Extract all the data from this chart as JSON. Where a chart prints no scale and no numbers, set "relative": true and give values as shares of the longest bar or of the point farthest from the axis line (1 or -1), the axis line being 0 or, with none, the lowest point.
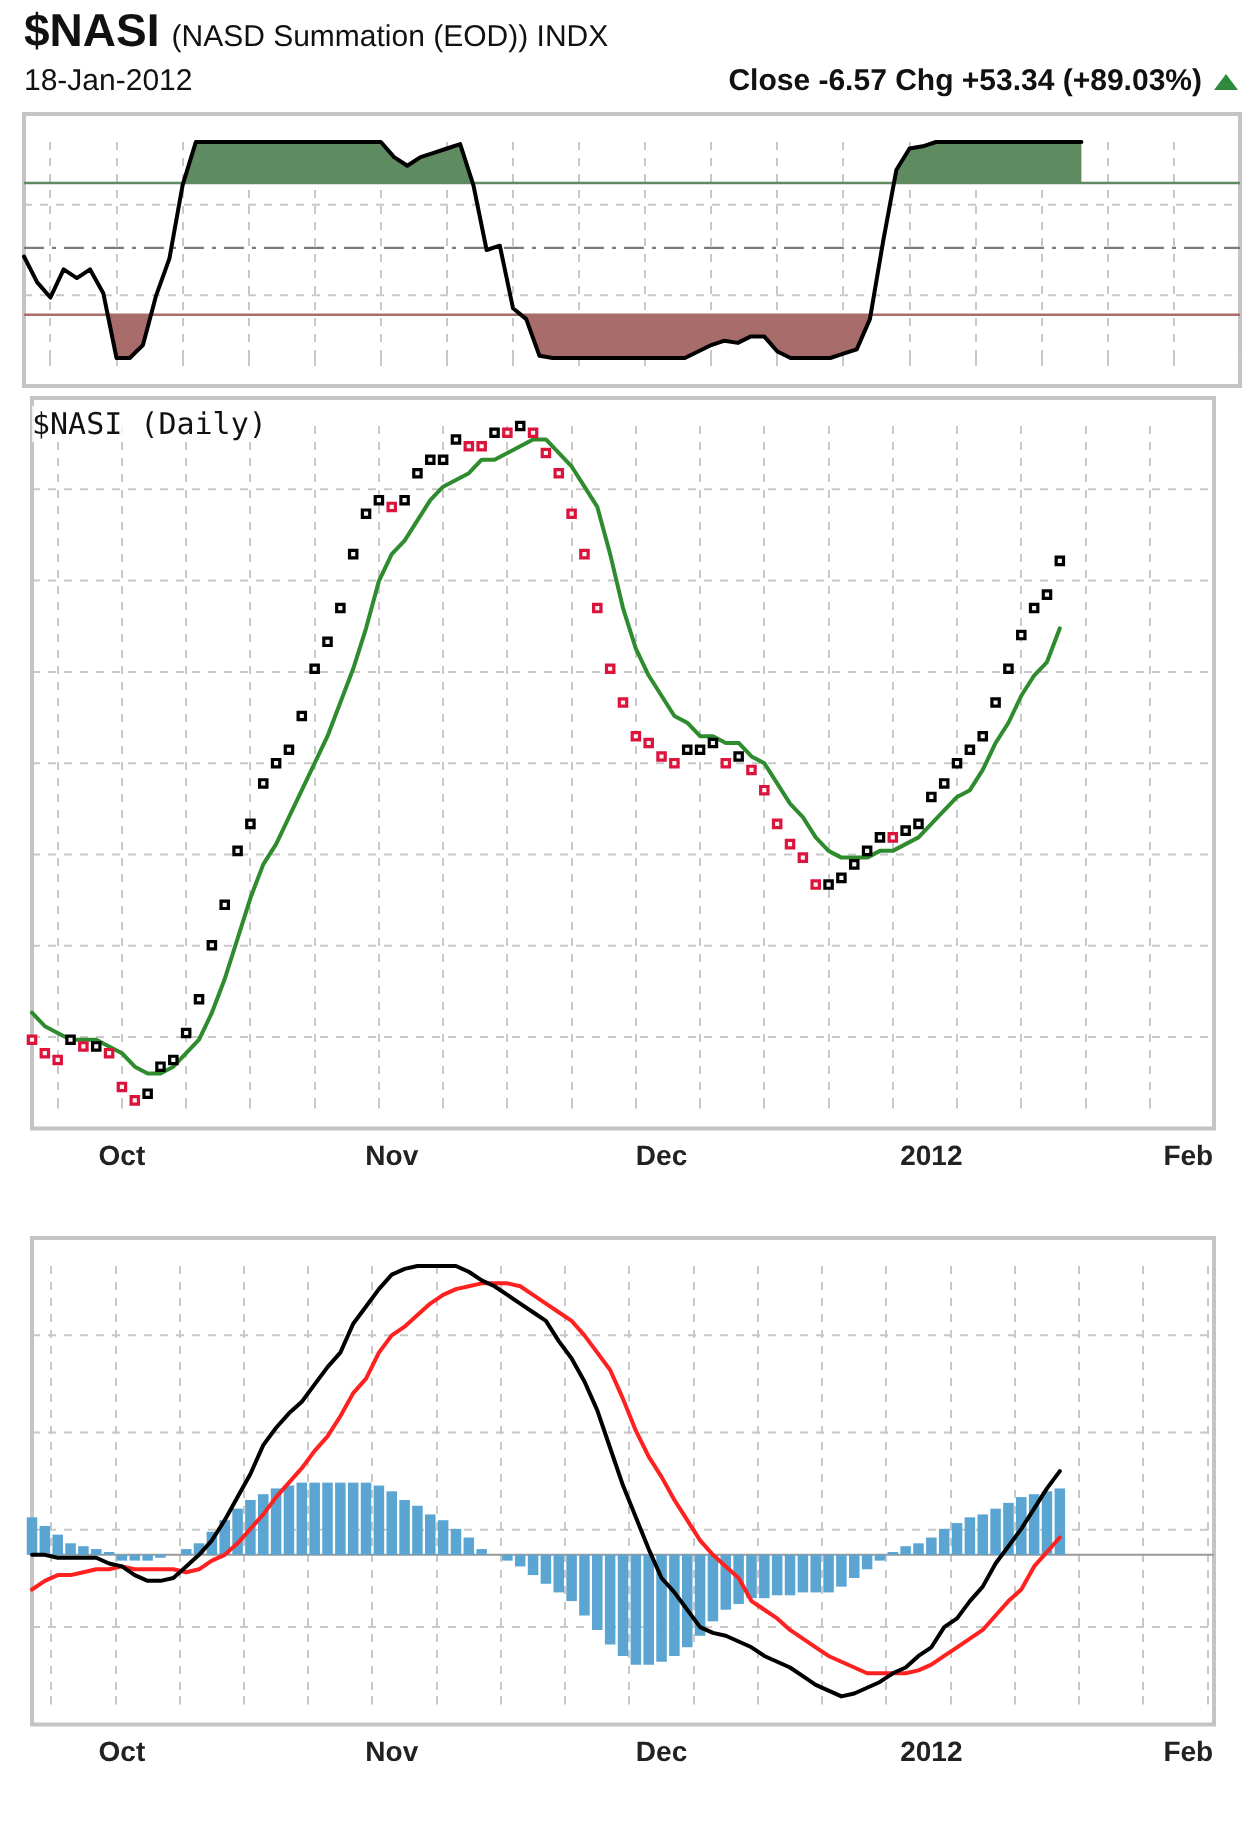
{
  "chart_data": [
    {
      "type": "line",
      "title": "$NASI",
      "subtitle": "(NASD Summation (EOD))  INDX",
      "annotations": [
        "18-Jan-2012",
        "Close -6.57  Chg +53.34 (+89.03%)"
      ],
      "relative": true,
      "grid": true,
      "tick_labels": false,
      "categories": [
        null,
        null,
        null,
        null,
        null,
        null,
        null,
        null,
        null,
        null,
        null,
        null,
        null,
        null,
        null,
        null,
        null,
        null,
        null,
        null,
        null,
        null,
        null,
        null,
        null,
        null,
        null,
        null,
        null,
        null,
        null,
        null,
        null,
        null,
        null,
        null,
        null,
        null,
        null,
        null,
        null,
        null,
        null,
        null,
        null,
        null,
        null,
        null,
        null,
        null,
        null,
        null,
        null,
        null,
        null,
        null,
        null,
        null,
        null,
        null,
        null,
        null,
        null,
        null,
        null,
        null,
        null,
        null,
        null,
        null,
        null,
        null,
        null,
        null,
        null,
        null,
        null,
        null,
        null,
        null,
        null,
        null,
        null,
        null,
        null,
        null,
        null,
        null,
        null,
        null,
        null,
        null,
        null
      ],
      "series": [
        {
          "color": "#000000",
          "values": [
            0.47,
            0.35,
            0.28,
            0.41,
            0.37,
            0.41,
            0.3,
            0,
            0,
            0.06,
            0.29,
            0.46,
            0.8,
            1,
            1,
            1,
            1,
            1,
            1,
            1,
            1,
            1,
            1,
            1,
            1,
            1,
            1,
            1,
            0.93,
            0.89,
            0.93,
            0.95,
            0.97,
            0.99,
            0.8,
            0.5,
            0.52,
            0.23,
            0.18,
            0.01,
            0,
            0,
            0,
            0,
            0,
            0,
            0,
            0,
            0,
            0,
            0,
            0.03,
            0.06,
            0.08,
            0.07,
            0.1,
            0.1,
            0.03,
            0,
            0,
            0,
            0,
            0.02,
            0.04,
            0.18,
            0.54,
            0.87,
            0.97,
            0.98,
            1,
            1,
            1,
            1,
            1,
            1,
            1,
            1,
            1,
            1,
            1,
            1,
            null,
            null,
            null,
            null,
            null,
            null,
            null,
            null,
            null,
            null,
            null,
            null
          ]
        }
      ],
      "ref_lines": [
        {
          "axis": "y",
          "value": 0.81,
          "color": "#5f8b61"
        },
        {
          "axis": "y",
          "value": 0.51,
          "line_style": "dashed"
        },
        {
          "axis": "y",
          "value": 0.2,
          "color": "#a86c6a"
        }
      ]
    },
    {
      "type": "scatter",
      "title": "$NASI (Daily)",
      "relative": true,
      "grid": true,
      "marker": "square",
      "categories": [
        null,
        null,
        null,
        null,
        null,
        null,
        null,
        "Oct",
        null,
        null,
        null,
        null,
        null,
        null,
        null,
        null,
        null,
        null,
        null,
        null,
        null,
        null,
        null,
        null,
        null,
        null,
        null,
        null,
        "Nov",
        null,
        null,
        null,
        null,
        null,
        null,
        null,
        null,
        null,
        null,
        null,
        null,
        null,
        null,
        null,
        null,
        null,
        null,
        null,
        null,
        "Dec",
        null,
        null,
        null,
        null,
        null,
        null,
        null,
        null,
        null,
        null,
        null,
        null,
        null,
        null,
        null,
        null,
        null,
        null,
        null,
        null,
        "2012",
        null,
        null,
        null,
        null,
        null,
        null,
        null,
        null,
        null,
        null,
        null,
        null,
        null,
        null,
        null,
        null,
        null,
        null,
        null,
        "Feb",
        null,
        null
      ],
      "series": [
        {
          "type": "line",
          "marker": "none",
          "color": "#2e8b2e",
          "values": [
            0.13,
            0.11,
            0.1,
            0.09,
            0.09,
            0.09,
            0.08,
            0.07,
            0.05,
            0.04,
            0.04,
            0.05,
            0.07,
            0.09,
            0.13,
            0.18,
            0.24,
            0.3,
            0.35,
            0.38,
            0.42,
            0.46,
            0.5,
            0.54,
            0.59,
            0.64,
            0.7,
            0.77,
            0.81,
            0.83,
            0.86,
            0.89,
            0.91,
            0.92,
            0.93,
            0.95,
            0.95,
            0.96,
            0.97,
            0.98,
            0.98,
            0.96,
            0.94,
            0.91,
            0.88,
            0.81,
            0.73,
            0.67,
            0.63,
            0.6,
            0.57,
            0.56,
            0.54,
            0.54,
            0.53,
            0.53,
            0.51,
            0.5,
            0.47,
            0.44,
            0.42,
            0.39,
            0.37,
            0.36,
            0.36,
            0.36,
            0.37,
            0.37,
            0.38,
            0.39,
            0.41,
            0.43,
            0.45,
            0.46,
            0.49,
            0.53,
            0.56,
            0.6,
            0.63,
            0.65,
            0.7,
            null,
            null,
            null,
            null,
            null,
            null,
            null,
            null,
            null,
            null,
            null,
            null
          ]
        },
        {
          "color": "#000000",
          "values": [
            null,
            null,
            null,
            0.09,
            null,
            0.08,
            null,
            null,
            null,
            0.01,
            0.05,
            0.06,
            0.1,
            0.15,
            0.23,
            0.29,
            0.37,
            0.41,
            0.47,
            0.5,
            0.52,
            0.57,
            0.64,
            0.68,
            0.73,
            0.81,
            0.87,
            0.89,
            null,
            0.89,
            0.93,
            0.95,
            0.95,
            0.98,
            null,
            null,
            0.99,
            null,
            1,
            null,
            null,
            null,
            null,
            null,
            null,
            null,
            null,
            null,
            null,
            null,
            null,
            0.52,
            0.52,
            0.53,
            null,
            0.51,
            null,
            null,
            null,
            null,
            null,
            null,
            0.32,
            0.33,
            0.35,
            0.37,
            0.39,
            null,
            0.4,
            0.41,
            0.45,
            0.47,
            0.5,
            0.52,
            0.54,
            0.59,
            0.64,
            0.69,
            0.73,
            0.75,
            0.8,
            null,
            null,
            null,
            null,
            null,
            null,
            null,
            null,
            null,
            null,
            null,
            null
          ]
        },
        {
          "color": "#dc143c",
          "values": [
            0.09,
            0.07,
            0.06,
            null,
            0.08,
            null,
            0.07,
            0.02,
            0,
            null,
            null,
            null,
            null,
            null,
            null,
            null,
            null,
            null,
            null,
            null,
            null,
            null,
            null,
            null,
            null,
            null,
            null,
            null,
            0.88,
            null,
            null,
            null,
            null,
            null,
            0.97,
            0.97,
            null,
            0.99,
            null,
            0.99,
            0.96,
            0.93,
            0.87,
            0.81,
            0.73,
            0.64,
            0.59,
            0.54,
            0.53,
            0.51,
            0.5,
            null,
            null,
            null,
            0.5,
            null,
            0.49,
            0.46,
            0.41,
            0.38,
            0.36,
            0.32,
            null,
            null,
            null,
            null,
            null,
            0.39,
            null,
            null,
            null,
            null,
            null,
            null,
            null,
            null,
            null,
            null,
            null,
            null,
            null,
            null,
            null,
            null,
            null,
            null,
            null,
            null,
            null,
            null,
            null,
            null,
            null
          ]
        }
      ]
    },
    {
      "type": "bar",
      "relative": true,
      "grid": true,
      "categories": [
        null,
        null,
        null,
        null,
        null,
        null,
        null,
        "Oct",
        null,
        null,
        null,
        null,
        null,
        null,
        null,
        null,
        null,
        null,
        null,
        null,
        null,
        null,
        null,
        null,
        null,
        null,
        null,
        null,
        "Nov",
        null,
        null,
        null,
        null,
        null,
        null,
        null,
        null,
        null,
        null,
        null,
        null,
        null,
        null,
        null,
        null,
        null,
        null,
        null,
        null,
        "Dec",
        null,
        null,
        null,
        null,
        null,
        null,
        null,
        null,
        null,
        null,
        null,
        null,
        null,
        null,
        null,
        null,
        null,
        null,
        null,
        null,
        "2012",
        null,
        null,
        null,
        null,
        null,
        null,
        null,
        null,
        null,
        null,
        null,
        null,
        null,
        null,
        null,
        null,
        null,
        null,
        null,
        "Feb",
        null,
        null
      ],
      "series": [
        {
          "color": "#5aa5d2",
          "values": [
            0.13,
            0.1,
            0.07,
            0.04,
            0.03,
            0.02,
            0.01,
            -0.02,
            -0.02,
            -0.02,
            -0.01,
            0,
            0.02,
            0.04,
            0.08,
            0.12,
            0.16,
            0.19,
            0.21,
            0.23,
            0.24,
            0.25,
            0.25,
            0.25,
            0.25,
            0.25,
            0.25,
            0.24,
            0.22,
            0.19,
            0.17,
            0.14,
            0.12,
            0.09,
            0.06,
            0.02,
            0,
            -0.02,
            -0.04,
            -0.07,
            -0.1,
            -0.13,
            -0.16,
            -0.21,
            -0.26,
            -0.31,
            -0.35,
            -0.38,
            -0.38,
            -0.37,
            -0.35,
            -0.32,
            -0.28,
            -0.23,
            -0.19,
            -0.17,
            -0.15,
            -0.15,
            -0.14,
            -0.14,
            -0.13,
            -0.13,
            -0.13,
            -0.11,
            -0.08,
            -0.05,
            -0.02,
            0.01,
            0.03,
            0.04,
            0.06,
            0.09,
            0.11,
            0.13,
            0.14,
            0.16,
            0.18,
            0.2,
            0.21,
            0.22,
            0.23,
            null,
            null,
            null,
            null,
            null,
            null,
            null,
            null,
            null,
            null,
            null,
            null
          ]
        },
        {
          "type": "line",
          "color": "#000000",
          "values": [
            0,
            0,
            -0.01,
            -0.01,
            -0.01,
            -0.01,
            -0.03,
            -0.04,
            -0.07,
            -0.09,
            -0.09,
            -0.08,
            -0.04,
            0,
            0.05,
            0.12,
            0.2,
            0.28,
            0.38,
            0.44,
            0.49,
            0.53,
            0.59,
            0.65,
            0.7,
            0.8,
            0.86,
            0.92,
            0.97,
            0.99,
            1,
            1,
            1,
            1,
            0.98,
            0.95,
            0.93,
            0.9,
            0.87,
            0.84,
            0.81,
            0.74,
            0.68,
            0.6,
            0.5,
            0.37,
            0.24,
            0.13,
            0.02,
            -0.08,
            -0.13,
            -0.19,
            -0.25,
            -0.27,
            -0.28,
            -0.3,
            -0.32,
            -0.35,
            -0.37,
            -0.39,
            -0.42,
            -0.45,
            -0.47,
            -0.49,
            -0.48,
            -0.46,
            -0.44,
            -0.41,
            -0.39,
            -0.35,
            -0.32,
            -0.25,
            -0.22,
            -0.16,
            -0.11,
            -0.03,
            0.03,
            0.09,
            0.16,
            0.23,
            0.29,
            null,
            null,
            null,
            null,
            null,
            null,
            null,
            null,
            null,
            null,
            null,
            null
          ]
        },
        {
          "type": "line",
          "color": "#ff2020",
          "values": [
            -0.12,
            -0.09,
            -0.07,
            -0.07,
            -0.06,
            -0.05,
            -0.05,
            -0.04,
            -0.05,
            -0.05,
            -0.05,
            -0.05,
            -0.06,
            -0.05,
            -0.02,
            0,
            0.04,
            0.09,
            0.14,
            0.2,
            0.25,
            0.3,
            0.36,
            0.41,
            0.48,
            0.56,
            0.61,
            0.7,
            0.76,
            0.79,
            0.83,
            0.87,
            0.9,
            0.92,
            0.93,
            0.94,
            0.94,
            0.94,
            0.93,
            0.9,
            0.87,
            0.84,
            0.81,
            0.76,
            0.7,
            0.64,
            0.54,
            0.43,
            0.34,
            0.27,
            0.19,
            0.12,
            0.05,
            0,
            -0.04,
            -0.08,
            -0.16,
            -0.19,
            -0.22,
            -0.26,
            -0.29,
            -0.32,
            -0.35,
            -0.37,
            -0.39,
            -0.41,
            -0.41,
            -0.41,
            -0.41,
            -0.4,
            -0.38,
            -0.35,
            -0.32,
            -0.29,
            -0.26,
            -0.21,
            -0.16,
            -0.12,
            -0.04,
            0.01,
            0.06,
            null,
            null,
            null,
            null,
            null,
            null,
            null,
            null,
            null,
            null,
            null,
            null
          ]
        }
      ]
    }
  ]
}
